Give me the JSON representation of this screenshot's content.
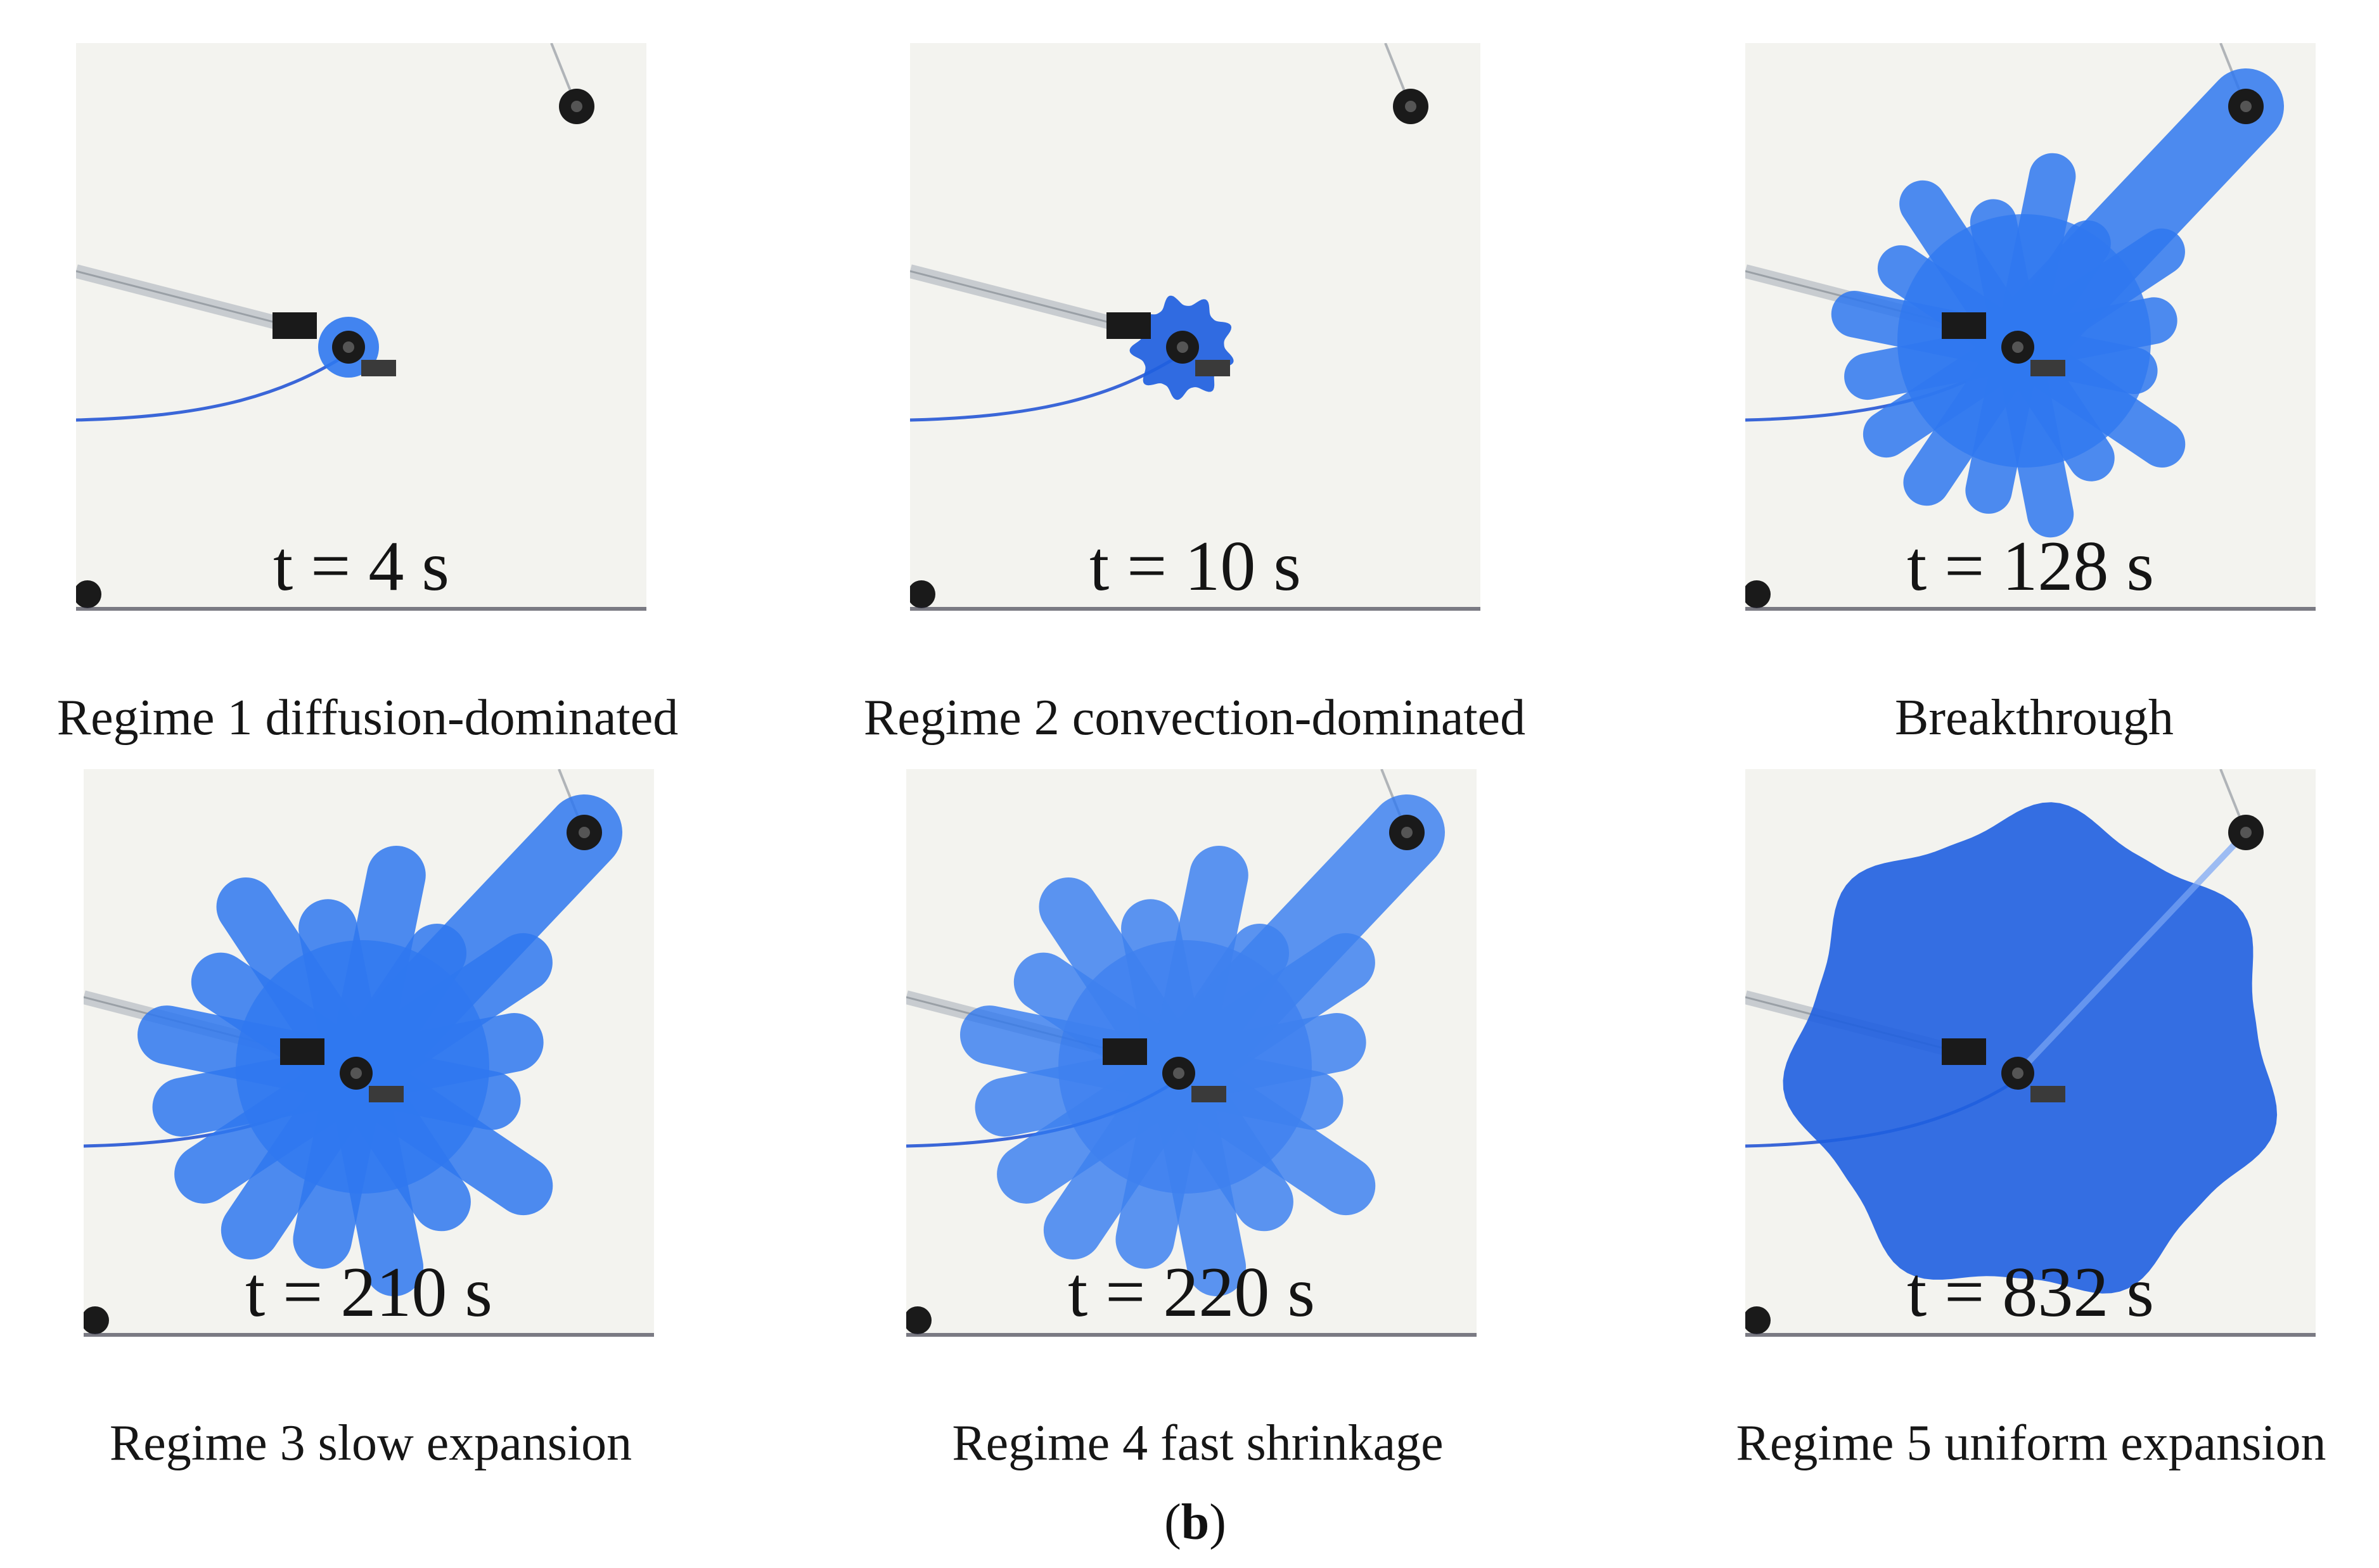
{
  "panels": [
    {
      "time": "t = 4 s",
      "caption": "Regime 1 diffusion-dominated",
      "stage": 0
    },
    {
      "time": "t = 10 s",
      "caption": "Regime 2 convection-dominated",
      "stage": 1
    },
    {
      "time": "t = 128 s",
      "caption": "Breakthrough",
      "stage": 2
    },
    {
      "time": "t = 210 s",
      "caption": "Regime 3 slow expansion",
      "stage": 3
    },
    {
      "time": "t = 220 s",
      "caption": "Regime 4 fast shrinkage",
      "stage": 4
    },
    {
      "time": "t = 832 s",
      "caption": "Regime 5 uniform expansion",
      "stage": 5
    }
  ],
  "sublabel": {
    "open": "(",
    "letter": "b",
    "close": ")"
  },
  "colors": {
    "dye": "#2f78f0",
    "dye_dark": "#1f5fe0",
    "background": "#f3f3ef",
    "fitting": "#1a1a1a"
  }
}
